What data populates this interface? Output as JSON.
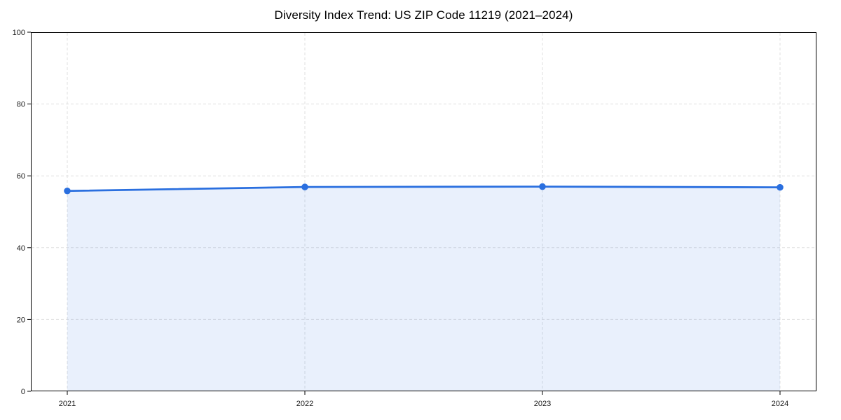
{
  "chart_data": {
    "type": "area",
    "title": "Diversity Index Trend: US ZIP Code 11219 (2021–2024)",
    "categories": [
      "2021",
      "2022",
      "2023",
      "2024"
    ],
    "values": [
      55.8,
      56.9,
      57.0,
      56.8
    ],
    "xlabel": "",
    "ylabel": "",
    "ylim": [
      0,
      100
    ],
    "yticks": [
      0,
      20,
      40,
      60,
      80,
      100
    ],
    "grid": true,
    "grid_style": "dashed",
    "legend_position": "none",
    "colors": {
      "line": "#2a6fdf",
      "marker": "#2a6fdf",
      "fill": "rgba(42, 111, 223, 0.10)",
      "grid": "#dfdfdf",
      "spine": "#000000",
      "tick_label": "#1a1a1a",
      "title": "#000000",
      "background": "#ffffff"
    }
  }
}
